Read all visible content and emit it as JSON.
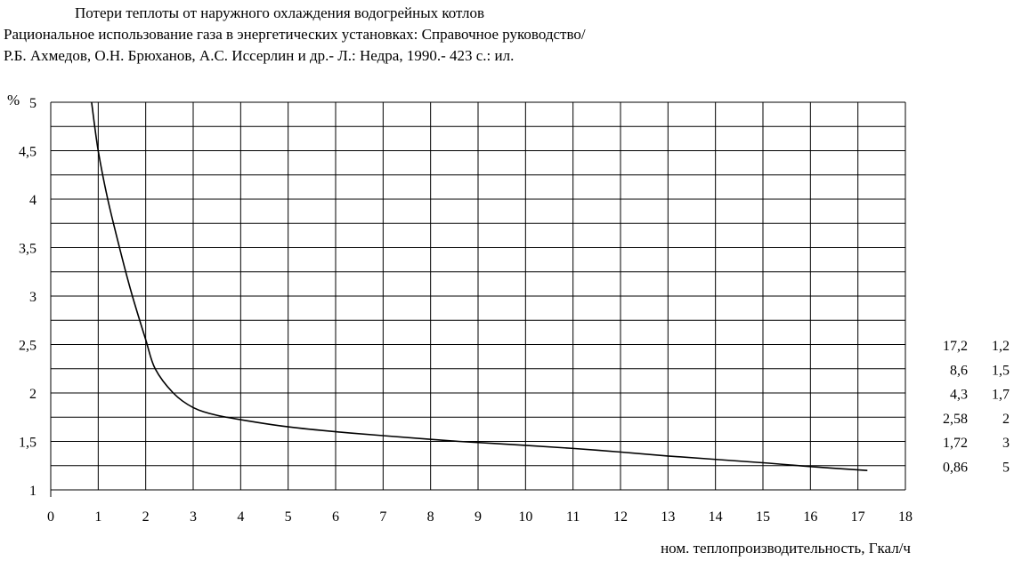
{
  "chart_data": {
    "type": "line",
    "title": [
      "Потери теплоты от наружного охлаждения водогрейных котлов",
      "Рациональное использование газа в энергетических установках: Справочное руководство/",
      "Р.Б. Ахмедов, О.Н. Брюханов, А.С. Иссерлин и др.- Л.: Недра, 1990.- 423 с.: ил."
    ],
    "xlabel": "ном. теплопроизводительность, Гкал/ч",
    "ylabel": "%",
    "xlim": [
      0,
      18
    ],
    "ylim": [
      1,
      5
    ],
    "x_ticks": [
      "0",
      "1",
      "2",
      "3",
      "4",
      "5",
      "6",
      "7",
      "8",
      "9",
      "10",
      "11",
      "12",
      "13",
      "14",
      "15",
      "16",
      "17",
      "18"
    ],
    "y_ticks": [
      "1",
      "1,5",
      "2",
      "2,5",
      "3",
      "3,5",
      "4",
      "4,5",
      "5"
    ],
    "grid": true,
    "series": [
      {
        "x": [
          0.86,
          1.0,
          1.2,
          1.5,
          1.72,
          2.0,
          2.2,
          2.58,
          3.0,
          3.5,
          4.3,
          5.0,
          6.0,
          7.0,
          8.6,
          10.0,
          11.5,
          13.0,
          15.0,
          16.0,
          17.2
        ],
        "y": [
          5.0,
          4.5,
          4.0,
          3.4,
          3.0,
          2.55,
          2.25,
          2.0,
          1.85,
          1.77,
          1.7,
          1.65,
          1.6,
          1.56,
          1.5,
          1.46,
          1.41,
          1.35,
          1.28,
          1.24,
          1.2
        ]
      }
    ],
    "reference_table": [
      [
        "17,2",
        "1,2"
      ],
      [
        "8,6",
        "1,5"
      ],
      [
        "4,3",
        "1,7"
      ],
      [
        "2,58",
        "2"
      ],
      [
        "1,72",
        "3"
      ],
      [
        "0,86",
        "5"
      ]
    ],
    "line_color": "#000000",
    "grid_color": "#000000"
  }
}
